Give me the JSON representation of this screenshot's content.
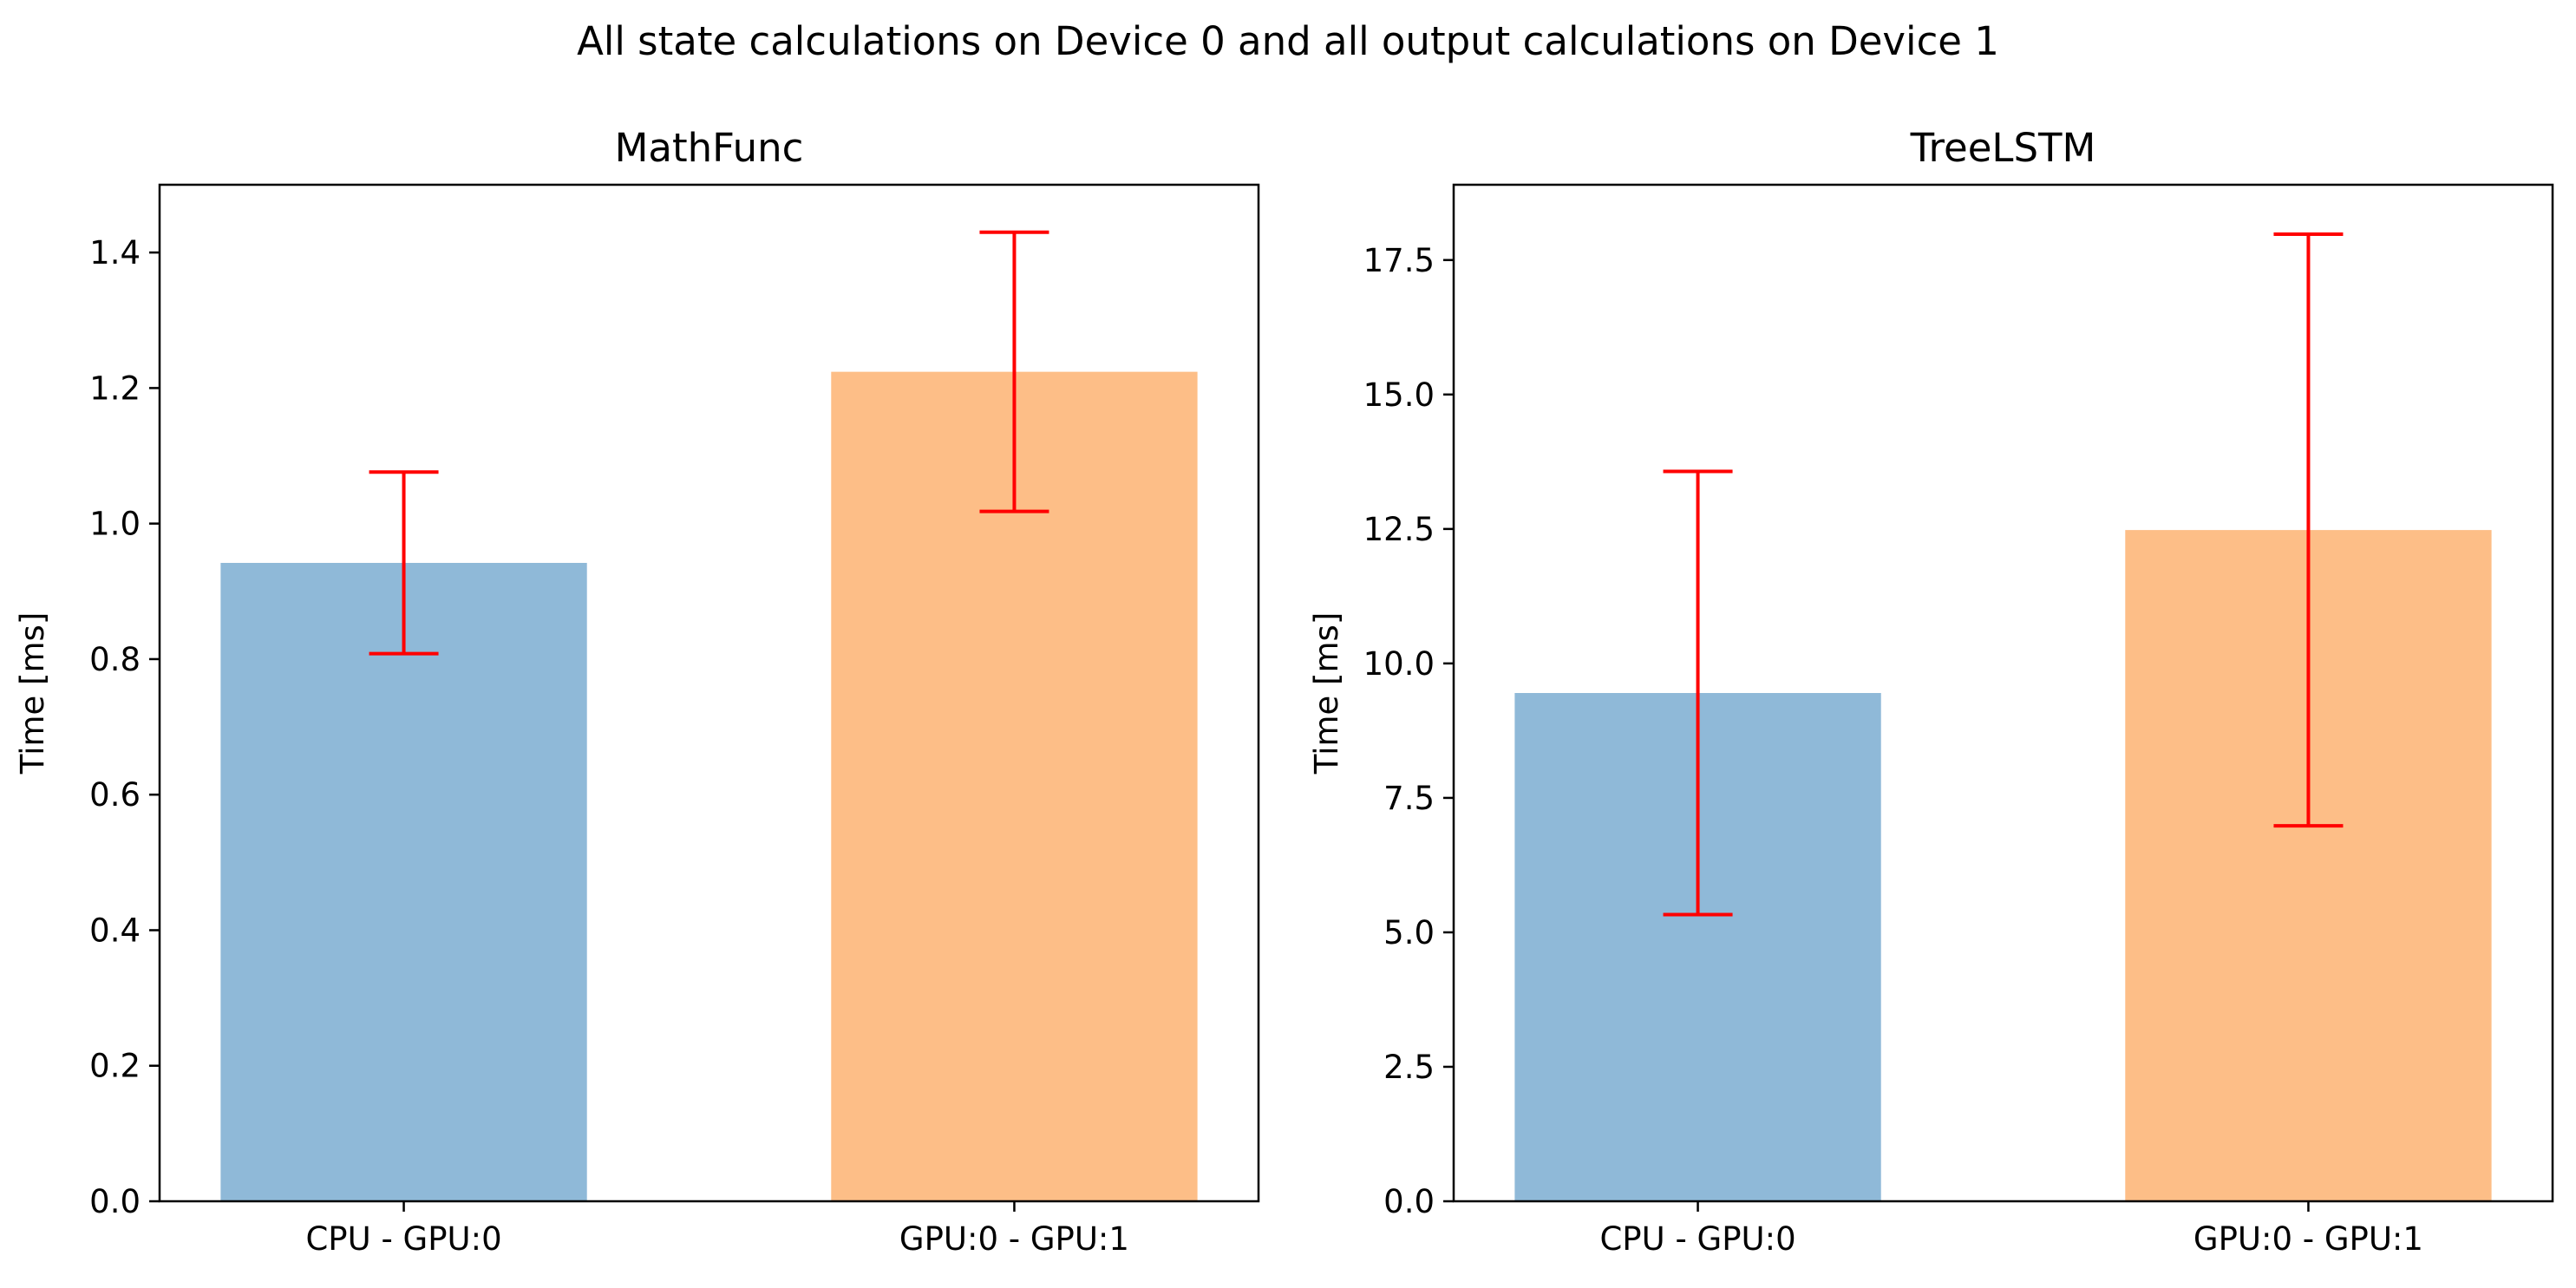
{
  "figure": {
    "suptitle": "All state calculations on Device 0 and all output calculations on Device 1"
  },
  "colors": {
    "bar_cpu": "#8fb9d8",
    "bar_gpu": "#fdbe87",
    "error_bar": "#ff0000",
    "axes": "#000000"
  },
  "chart_data": [
    {
      "type": "bar",
      "title": "MathFunc",
      "xlabel": "",
      "ylabel": "Time [ms]",
      "categories": [
        "CPU - GPU:0",
        "GPU:0 - GPU:1"
      ],
      "values": [
        0.942,
        1.224
      ],
      "errors": [
        0.134,
        0.206
      ],
      "ylim": [
        0,
        1.5
      ],
      "yticks": [
        0.0,
        0.2,
        0.4,
        0.6,
        0.8,
        1.0,
        1.2,
        1.4
      ],
      "ytick_labels": [
        "0.0",
        "0.2",
        "0.4",
        "0.6",
        "0.8",
        "1.0",
        "1.2",
        "1.4"
      ],
      "grid": false
    },
    {
      "type": "bar",
      "title": "TreeLSTM",
      "xlabel": "",
      "ylabel": "Time [ms]",
      "categories": [
        "CPU - GPU:0",
        "GPU:0 - GPU:1"
      ],
      "values": [
        9.45,
        12.48
      ],
      "errors": [
        4.12,
        5.5
      ],
      "ylim": [
        0,
        18.9
      ],
      "yticks": [
        0.0,
        2.5,
        5.0,
        7.5,
        10.0,
        12.5,
        15.0,
        17.5
      ],
      "ytick_labels": [
        "0.0",
        "2.5",
        "5.0",
        "7.5",
        "10.0",
        "12.5",
        "15.0",
        "17.5"
      ],
      "grid": false
    }
  ]
}
